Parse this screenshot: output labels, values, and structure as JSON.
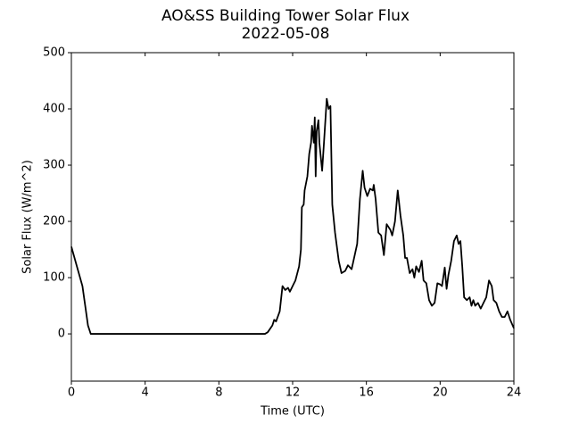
{
  "chart_data": {
    "type": "line",
    "title": "AO&SS Building Tower Solar Flux",
    "subtitle": "2022-05-08",
    "x_label": "Time (UTC)",
    "y_label": "Solar Flux (W/m^2)",
    "color": "#000000",
    "xlim": [
      0,
      24
    ],
    "ylim": [
      -84,
      500
    ],
    "xticks": [
      0,
      4,
      8,
      12,
      16,
      20,
      24
    ],
    "yticks": [
      0,
      100,
      200,
      300,
      400,
      500
    ],
    "x": [
      0,
      0.3,
      0.6,
      0.75,
      0.9,
      1.05,
      10.5,
      10.65,
      10.9,
      11.0,
      11.1,
      11.3,
      11.45,
      11.6,
      11.75,
      11.85,
      12.0,
      12.15,
      12.35,
      12.45,
      12.5,
      12.6,
      12.65,
      12.8,
      12.9,
      13.0,
      13.05,
      13.15,
      13.2,
      13.25,
      13.3,
      13.4,
      13.45,
      13.6,
      13.7,
      13.85,
      13.95,
      14.05,
      14.15,
      14.3,
      14.5,
      14.65,
      14.85,
      15.0,
      15.2,
      15.4,
      15.5,
      15.65,
      15.8,
      15.9,
      16.05,
      16.2,
      16.35,
      16.4,
      16.5,
      16.65,
      16.8,
      16.95,
      17.1,
      17.3,
      17.4,
      17.55,
      17.7,
      17.85,
      18.0,
      18.1,
      18.2,
      18.35,
      18.5,
      18.6,
      18.7,
      18.85,
      19.0,
      19.1,
      19.25,
      19.4,
      19.55,
      19.7,
      19.85,
      20.0,
      20.1,
      20.25,
      20.35,
      20.45,
      20.6,
      20.75,
      20.9,
      21.0,
      21.1,
      21.2,
      21.3,
      21.45,
      21.6,
      21.7,
      21.8,
      21.9,
      22.05,
      22.2,
      22.35,
      22.5,
      22.65,
      22.8,
      22.9,
      23.05,
      23.2,
      23.35,
      23.5,
      23.65,
      23.8,
      24.0
    ],
    "values": [
      155,
      120,
      85,
      50,
      15,
      0,
      0,
      3,
      15,
      25,
      22,
      40,
      85,
      78,
      82,
      75,
      85,
      95,
      120,
      150,
      225,
      230,
      255,
      280,
      320,
      340,
      370,
      340,
      385,
      280,
      360,
      380,
      340,
      290,
      340,
      418,
      400,
      405,
      230,
      180,
      130,
      108,
      112,
      122,
      115,
      145,
      160,
      240,
      290,
      260,
      245,
      258,
      255,
      265,
      240,
      180,
      175,
      140,
      195,
      185,
      175,
      200,
      255,
      210,
      175,
      135,
      135,
      108,
      115,
      100,
      120,
      110,
      130,
      95,
      90,
      60,
      50,
      55,
      90,
      88,
      85,
      118,
      80,
      105,
      130,
      165,
      175,
      160,
      165,
      120,
      65,
      60,
      65,
      50,
      60,
      50,
      55,
      45,
      55,
      65,
      95,
      85,
      60,
      55,
      40,
      30,
      30,
      40,
      25,
      10
    ]
  }
}
